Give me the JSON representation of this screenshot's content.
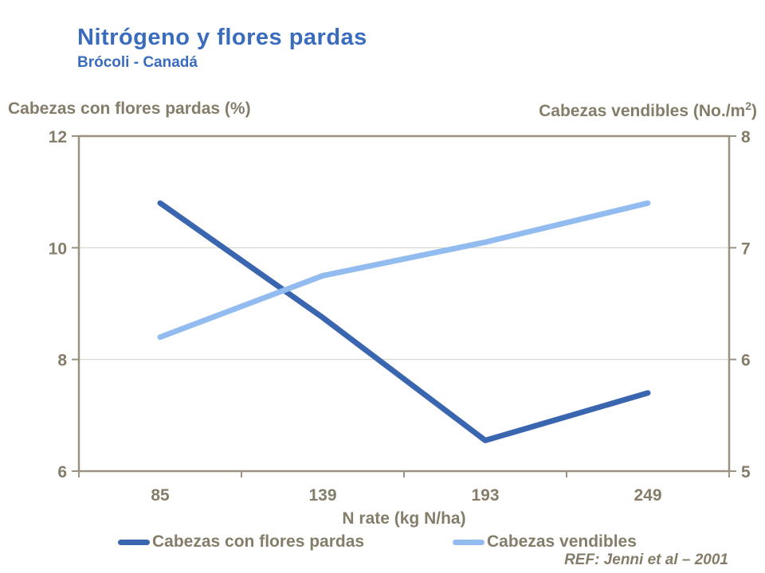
{
  "slide": {
    "title": "Nitrógeno y flores pardas",
    "subtitle": "Brócoli - Canadá",
    "ref": "REF: Jenni et al – 2001"
  },
  "chart_data": {
    "type": "line",
    "categories": [
      "85",
      "139",
      "193",
      "249"
    ],
    "x_axis_label": "N rate (kg N/ha)",
    "left_axis": {
      "title": "Cabezas con flores pardas (%)",
      "ticks": [
        12,
        10,
        8,
        6
      ],
      "range": [
        6,
        12
      ]
    },
    "right_axis": {
      "title_prefix": "Cabezas vendibles (No./m",
      "title_sup": "2",
      "title_suffix": ")",
      "ticks": [
        8,
        7,
        6,
        5
      ],
      "range": [
        5,
        8
      ]
    },
    "series": [
      {
        "name": "Cabezas con flores pardas",
        "axis": "left",
        "color": "#3A66B0",
        "values": [
          10.8,
          8.75,
          6.55,
          7.4
        ]
      },
      {
        "name": "Cabezas vendibles",
        "axis": "right",
        "color": "#92BCF0",
        "values": [
          6.2,
          6.75,
          7.05,
          7.4
        ]
      }
    ],
    "grid": "horizontal",
    "legend_position": "bottom",
    "colors": {
      "title": "#3A6CBE",
      "axis_text": "#857D6A",
      "axis_line": "#9A9181",
      "gridline": "#D5D2CB",
      "background": "#FFFFFF"
    }
  }
}
